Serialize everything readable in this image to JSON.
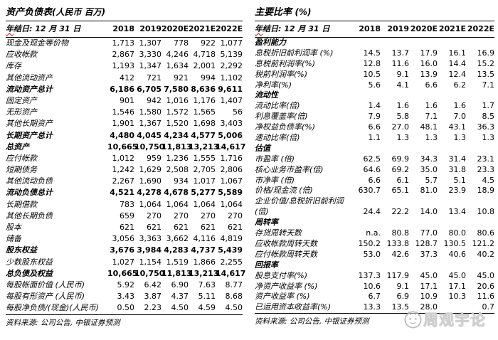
{
  "colors": {
    "text": "#000000",
    "rule": "#000000",
    "spellcheck_red": "#cc0000",
    "watermark_gray": "#c0c0c0"
  },
  "balance_sheet": {
    "title": "资产负债表",
    "title_note": "(人民币 百万)",
    "header": {
      "label_first": "年",
      "label_rest": "结日: 12 月 31 日",
      "years": [
        "2018",
        "2019",
        "2020E",
        "2021E",
        "2022E"
      ]
    },
    "rows": [
      {
        "label": "现金及现金等价物",
        "values": [
          "1,713",
          "1,307",
          "778",
          "922",
          "1,077"
        ]
      },
      {
        "label": "应收帐款",
        "values": [
          "2,867",
          "3,330",
          "4,246",
          "4,718",
          "5,139"
        ]
      },
      {
        "label": "库存",
        "values": [
          "1,193",
          "1,347",
          "1,634",
          "2,001",
          "2,292"
        ]
      },
      {
        "label": "其他流动资产",
        "values": [
          "412",
          "721",
          "921",
          "994",
          "1,102"
        ]
      },
      {
        "label": "流动资产总计",
        "values": [
          "6,186",
          "6,705",
          "7,580",
          "8,636",
          "9,611"
        ],
        "bold": true
      },
      {
        "label": "固定资产",
        "values": [
          "901",
          "942",
          "1,016",
          "1,176",
          "1,407"
        ]
      },
      {
        "label": "无形资产",
        "values": [
          "1,546",
          "1,580",
          "1,572",
          "1,565",
          "56"
        ]
      },
      {
        "label": "其他长期资产",
        "values": [
          "1,901",
          "1,367",
          "1,520",
          "1,698",
          "3,403"
        ]
      },
      {
        "label": "长期资产总计",
        "values": [
          "4,480",
          "4,045",
          "4,234",
          "4,577",
          "5,006"
        ],
        "bold": true
      },
      {
        "label": "总资产",
        "values": [
          "10,665",
          "10,750",
          "11,813",
          "13,213",
          "14,617"
        ],
        "bold": true
      },
      {
        "label": "应付帐款",
        "values": [
          "1,012",
          "959",
          "1,236",
          "1,555",
          "1,716"
        ]
      },
      {
        "label": "短期债务",
        "values": [
          "1,242",
          "1,629",
          "2,508",
          "2,705",
          "2,806"
        ]
      },
      {
        "label": "其他流动负债",
        "values": [
          "2,267",
          "1,690",
          "934",
          "1,017",
          "1,067"
        ]
      },
      {
        "label": "流动负债总计",
        "values": [
          "4,521",
          "4,278",
          "4,678",
          "5,277",
          "5,589"
        ],
        "bold": true
      },
      {
        "label": "长期借款",
        "values": [
          "783",
          "1,064",
          "1,064",
          "1,064",
          "1,064"
        ]
      },
      {
        "label": "其他长期负债",
        "values": [
          "659",
          "270",
          "270",
          "270",
          "270"
        ]
      },
      {
        "label": "股本",
        "values": [
          "621",
          "621",
          "621",
          "621",
          "621"
        ]
      },
      {
        "label": "储备",
        "values": [
          "3,056",
          "3,363",
          "3,662",
          "4,116",
          "4,819"
        ]
      },
      {
        "label": "股东权益",
        "values": [
          "3,676",
          "3,984",
          "4,283",
          "4,737",
          "5,439"
        ],
        "bold": true
      },
      {
        "label": "少数股东权益",
        "values": [
          "1,027",
          "1,154",
          "1,519",
          "1,866",
          "2,255"
        ]
      },
      {
        "label": "总负债及权益",
        "values": [
          "10,665",
          "10,750",
          "11,813",
          "13,213",
          "14,617"
        ],
        "bold": true
      },
      {
        "label": "每股帐面价值 (人民币)",
        "values": [
          "5.92",
          "6.42",
          "6.90",
          "7.63",
          "8.77"
        ]
      },
      {
        "label": "每股有形资产 (人民币)",
        "values": [
          "3.43",
          "3.87",
          "4.37",
          "5.11",
          "8.68"
        ]
      },
      {
        "label": "每股净负债/(现金)(人民币)",
        "values": [
          "0.50",
          "2.23",
          "4.50",
          "4.59",
          "4.50"
        ]
      }
    ],
    "source": "资料来源: 公司公告, 中银证券预测"
  },
  "key_ratios": {
    "title": "主要比率",
    "title_note": "(%)",
    "header": {
      "label_first": "年",
      "label_rest": "结日: 12 月 31 日",
      "years": [
        "2018",
        "2019",
        "2020E",
        "2021E",
        "2022E"
      ]
    },
    "rows": [
      {
        "label": "盈利能力",
        "section": true,
        "values": []
      },
      {
        "label": "息税折旧前利润率 (%)",
        "values": [
          "14.5",
          "13.7",
          "17.9",
          "16.1",
          "16.9"
        ]
      },
      {
        "label": "息税前利润率(%)",
        "values": [
          "12.8",
          "11.6",
          "16.0",
          "14.4",
          "15.2"
        ]
      },
      {
        "label": "税前利润率(%)",
        "values": [
          "10.5",
          "9.1",
          "13.9",
          "12.4",
          "13.5"
        ]
      },
      {
        "label": "净利率(%)",
        "values": [
          "5.6",
          "4.1",
          "6.6",
          "6.2",
          "7.1"
        ]
      },
      {
        "label": "流动性",
        "section": true,
        "values": []
      },
      {
        "label": "流动比率(倍)",
        "values": [
          "1.4",
          "1.6",
          "1.6",
          "1.6",
          "1.7"
        ]
      },
      {
        "label": "利息覆盖率(倍)",
        "values": [
          "7.9",
          "5.8",
          "7.1",
          "7.0",
          "8.5"
        ]
      },
      {
        "label": "净权益负债率(%)",
        "values": [
          "6.6",
          "27.0",
          "48.1",
          "43.1",
          "36.3"
        ]
      },
      {
        "label": "速动比率(倍)",
        "values": [
          "1.1",
          "1.3",
          "1.3",
          "1.3",
          "1.3"
        ]
      },
      {
        "label": "估值",
        "section": true,
        "values": []
      },
      {
        "label": "市盈率 (倍)",
        "values": [
          "62.5",
          "69.9",
          "34.3",
          "31.4",
          "23.1"
        ]
      },
      {
        "label": "核心业务市盈率(倍)",
        "values": [
          "64.6",
          "69.2",
          "35.0",
          "31.8",
          "23.3"
        ]
      },
      {
        "label": "市净率 (倍)",
        "values": [
          "6.6",
          "6.1",
          "5.7",
          "5.1",
          "4.5"
        ]
      },
      {
        "label": "价格/现金流 (倍)",
        "values": [
          "630.7",
          "65.1",
          "81.0",
          "23.9",
          "18.9"
        ]
      },
      {
        "label": "企业价值/息税折旧前利润(倍)",
        "values": [
          "24.4",
          "22.2",
          "14.0",
          "13.4",
          "10.8"
        ],
        "twoline": true
      },
      {
        "label": "周转率",
        "section": true,
        "values": []
      },
      {
        "label": "存货周转天数",
        "values": [
          "n.a.",
          "80.8",
          "77.0",
          "80.0",
          "80.6"
        ]
      },
      {
        "label": "应收帐款周转天数",
        "values": [
          "150.2",
          "133.8",
          "128.7",
          "130.5",
          "121.2"
        ]
      },
      {
        "label": "应付帐款周转天数",
        "values": [
          "53.0",
          "42.6",
          "37.3",
          "40.6",
          "40.2"
        ]
      },
      {
        "label": "回报率",
        "section": true,
        "values": []
      },
      {
        "label": "股息支付率(%)",
        "values": [
          "137.3",
          "117.9",
          "45.0",
          "45.0",
          "45.0"
        ]
      },
      {
        "label": "净资产收益率 (%)",
        "values": [
          "10.6",
          "9.1",
          "17.1",
          "17.1",
          "20.6"
        ]
      },
      {
        "label": "资产收益率 (%)",
        "values": [
          "6.7",
          "6.9",
          "10.9",
          "10.3",
          "11.6"
        ]
      },
      {
        "label": "已运用资本收益率(%)",
        "values": [
          "13.3",
          "13.5",
          "28.0",
          "",
          "0.7"
        ]
      }
    ],
    "source": "资料来源: 公司公告, 中银证券预测"
  },
  "watermark": {
    "text": "周观宇论",
    "logo": "cat-face-icon"
  }
}
